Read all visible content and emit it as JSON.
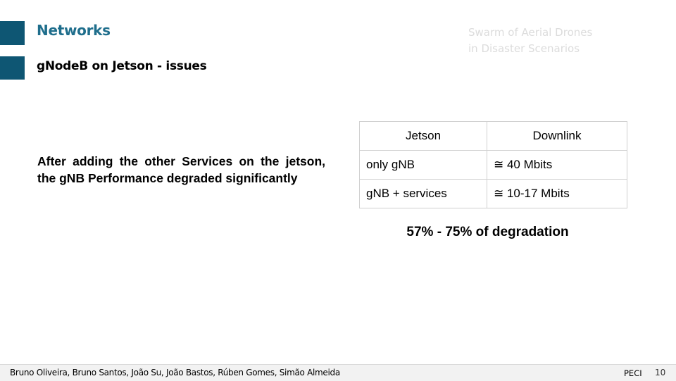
{
  "header": {
    "section_title": "Networks",
    "slide_title": "gNodeB on Jetson - issues",
    "project_title_line1": "Swarm of Aerial Drones",
    "project_title_line2": "in Disaster Scenarios"
  },
  "body": {
    "text": "After adding the other Services on the jetson, the gNB Performance degraded significantly"
  },
  "table": {
    "headers": [
      "Jetson",
      "Downlink"
    ],
    "rows": [
      [
        "only gNB",
        "≅ 40 Mbits"
      ],
      [
        "gNB + services",
        "≅ 10-17 Mbits"
      ]
    ]
  },
  "caption": "57% - 75% of degradation",
  "footer": {
    "authors": "Bruno Oliveira, Bruno Santos, João Su, João Bastos, Rúben Gomes, Simão Almeida",
    "course": "PECI",
    "page_number": "10"
  },
  "colors": {
    "accent": "#0e5673",
    "section_title": "#1f6e8c"
  }
}
